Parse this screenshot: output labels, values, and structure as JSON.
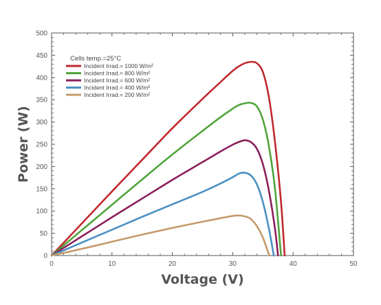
{
  "chart_data": {
    "type": "line",
    "title": "",
    "xlabel": "Voltage (V)",
    "ylabel": "Power (W)",
    "xlim": [
      0,
      50
    ],
    "ylim": [
      0,
      500
    ],
    "x_ticks": [
      0,
      10,
      20,
      30,
      40,
      50
    ],
    "y_ticks": [
      0,
      50,
      100,
      150,
      200,
      250,
      300,
      350,
      400,
      450,
      500
    ],
    "grid": false,
    "legend_title": "Cells temp.=25°C",
    "legend_position": "top-left",
    "series": [
      {
        "name": "Incident Irrad.= 1000 W/m²",
        "color": "#c0282d",
        "points": [
          [
            0,
            0
          ],
          [
            5,
            72
          ],
          [
            10,
            144
          ],
          [
            15,
            215
          ],
          [
            20,
            286
          ],
          [
            25,
            352
          ],
          [
            28,
            390
          ],
          [
            30,
            415
          ],
          [
            31,
            425
          ],
          [
            32,
            432
          ],
          [
            33,
            435
          ],
          [
            34,
            432
          ],
          [
            35,
            412
          ],
          [
            36,
            355
          ],
          [
            37,
            255
          ],
          [
            38,
            120
          ],
          [
            38.6,
            0
          ]
        ]
      },
      {
        "name": "Incident Irrad.= 800 W/m²",
        "color": "#4fa43a",
        "points": [
          [
            0,
            0
          ],
          [
            5,
            57
          ],
          [
            10,
            114
          ],
          [
            15,
            171
          ],
          [
            20,
            227
          ],
          [
            25,
            280
          ],
          [
            28,
            311
          ],
          [
            30,
            330
          ],
          [
            31,
            338
          ],
          [
            32,
            342
          ],
          [
            33,
            343
          ],
          [
            34,
            335
          ],
          [
            35,
            305
          ],
          [
            36,
            245
          ],
          [
            37,
            150
          ],
          [
            38,
            0
          ]
        ]
      },
      {
        "name": "Incident Irrad.= 600 W/m²",
        "color": "#8b1e5a",
        "points": [
          [
            0,
            0
          ],
          [
            5,
            43
          ],
          [
            10,
            86
          ],
          [
            15,
            128
          ],
          [
            20,
            170
          ],
          [
            25,
            210
          ],
          [
            28,
            234
          ],
          [
            30,
            249
          ],
          [
            31,
            255
          ],
          [
            32,
            259
          ],
          [
            33,
            255
          ],
          [
            34,
            240
          ],
          [
            35,
            205
          ],
          [
            36,
            145
          ],
          [
            37,
            60
          ],
          [
            37.5,
            0
          ]
        ]
      },
      {
        "name": "Incident Irrad.= 400 W/m²",
        "color": "#4a90c2",
        "points": [
          [
            0,
            0
          ],
          [
            5,
            29
          ],
          [
            10,
            58
          ],
          [
            15,
            87
          ],
          [
            20,
            115
          ],
          [
            25,
            143
          ],
          [
            28,
            162
          ],
          [
            30,
            176
          ],
          [
            31,
            184
          ],
          [
            32,
            186
          ],
          [
            33,
            180
          ],
          [
            34,
            160
          ],
          [
            35,
            120
          ],
          [
            36,
            60
          ],
          [
            36.8,
            0
          ]
        ]
      },
      {
        "name": "Incident Irrad.= 200 W/m²",
        "color": "#c49a6c",
        "points": [
          [
            0,
            0
          ],
          [
            5,
            15
          ],
          [
            10,
            31
          ],
          [
            15,
            47
          ],
          [
            20,
            62
          ],
          [
            25,
            76
          ],
          [
            28,
            84
          ],
          [
            30,
            89
          ],
          [
            31,
            90
          ],
          [
            32,
            88
          ],
          [
            33,
            82
          ],
          [
            34,
            66
          ],
          [
            35,
            40
          ],
          [
            35.8,
            10
          ],
          [
            36.1,
            0
          ]
        ]
      }
    ]
  }
}
